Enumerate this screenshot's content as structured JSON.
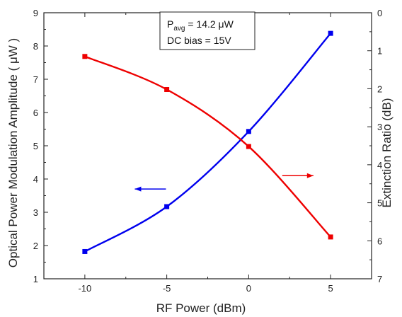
{
  "chart_data": {
    "type": "line",
    "xlabel": "RF Power (dBm)",
    "ylabel_left": "Optical Power Modulation Amplitude ( μW )",
    "ylabel_right": "Extinction Ratio (dB)",
    "xlim": [
      -12.5,
      7.5
    ],
    "ylim_left": [
      1,
      9
    ],
    "ylim_right": [
      0,
      7
    ],
    "right_axis_inverted": true,
    "x_ticks": [
      -10,
      -5,
      0,
      5
    ],
    "y_left_ticks": [
      1,
      2,
      3,
      4,
      5,
      6,
      7,
      8,
      9
    ],
    "y_right_ticks": [
      0,
      1,
      2,
      3,
      4,
      5,
      6,
      7
    ],
    "grid": false,
    "series": [
      {
        "axis": "left",
        "color": "#0000ee",
        "x": [
          -10,
          -5,
          0,
          5
        ],
        "values": [
          1.82,
          3.17,
          5.43,
          8.38
        ]
      },
      {
        "axis": "right",
        "color": "#ee0000",
        "x": [
          -10,
          -5,
          0,
          5
        ],
        "values": [
          1.15,
          2.02,
          3.52,
          5.9
        ]
      }
    ],
    "annotation": {
      "p_prefix": "P",
      "p_sub": "avg",
      "p_suffix": " = 14.2 μW",
      "bias": "DC bias = 15V"
    },
    "arrows": [
      {
        "series_color": "#0000ee",
        "direction": "left",
        "x": -6.0,
        "y_left": 3.7
      },
      {
        "series_color": "#ee0000",
        "direction": "right",
        "x": 3.0,
        "y_left": 4.1
      }
    ]
  }
}
